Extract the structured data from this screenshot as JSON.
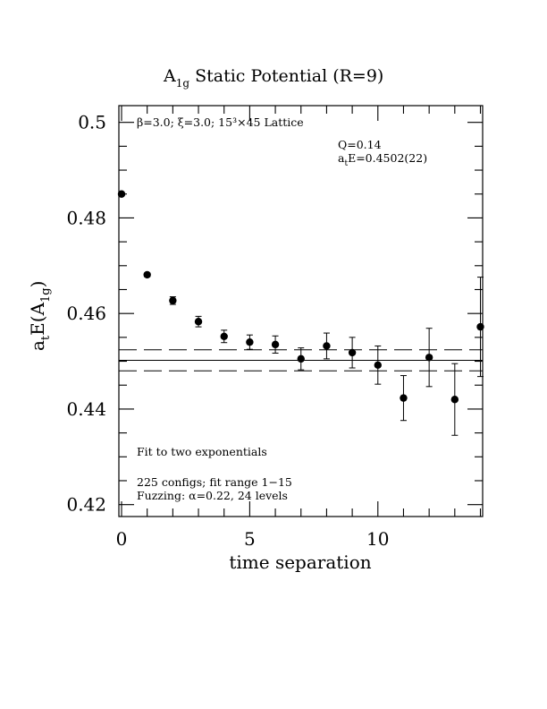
{
  "chart_data": {
    "type": "scatter",
    "title": {
      "prefix": "A",
      "sub": "1g",
      "suffix": " Static Potential (R=9)"
    },
    "xlabel": "time separation",
    "ylabel": {
      "a": "a",
      "a_sub": "t",
      "mid": "E(A",
      "mid_sub": "1g",
      "end": ")"
    },
    "xlim": [
      0,
      14
    ],
    "ylim": [
      0.4175,
      0.5035
    ],
    "x_ticks": [
      0,
      5,
      10
    ],
    "x_tick_labels": [
      "0",
      "5",
      "10"
    ],
    "y_ticks": [
      0.42,
      0.44,
      0.46,
      0.48,
      0.5
    ],
    "y_tick_labels": [
      "0.42",
      "0.44",
      "0.46",
      "0.48",
      "0.5"
    ],
    "annotations": {
      "lattice": "β=3.0; ξ=3.0; 15³×45 Lattice",
      "q": "Q=0.14",
      "energy_a": "a",
      "energy_sub": "t",
      "energy_rest": "E=0.4502(22)",
      "fit": "Fit to two exponentials",
      "configs": "225 configs; fit range 1−15",
      "fuzzing": "Fuzzing: α=0.22, 24 levels"
    },
    "fit": {
      "value": 0.4502,
      "error": 0.0022,
      "x_range": [
        0,
        14
      ]
    },
    "series": [
      {
        "points": [
          {
            "x": 0,
            "y": 0.485,
            "err": 0.0003
          },
          {
            "x": 1,
            "y": 0.4681,
            "err": 0.0004
          },
          {
            "x": 2,
            "y": 0.4627,
            "err": 0.0008
          },
          {
            "x": 3,
            "y": 0.4583,
            "err": 0.0011
          },
          {
            "x": 4,
            "y": 0.4552,
            "err": 0.0013
          },
          {
            "x": 5,
            "y": 0.454,
            "err": 0.0015
          },
          {
            "x": 6,
            "y": 0.4535,
            "err": 0.0018
          },
          {
            "x": 7,
            "y": 0.4505,
            "err": 0.0023
          },
          {
            "x": 8,
            "y": 0.4532,
            "err": 0.0027
          },
          {
            "x": 9,
            "y": 0.4518,
            "err": 0.0032
          },
          {
            "x": 10,
            "y": 0.4492,
            "err": 0.004
          },
          {
            "x": 11,
            "y": 0.4423,
            "err": 0.0047
          },
          {
            "x": 12,
            "y": 0.4508,
            "err": 0.0061
          },
          {
            "x": 13,
            "y": 0.442,
            "err": 0.0075
          },
          {
            "x": 14,
            "y": 0.4572,
            "err": 0.0104
          }
        ]
      }
    ]
  }
}
